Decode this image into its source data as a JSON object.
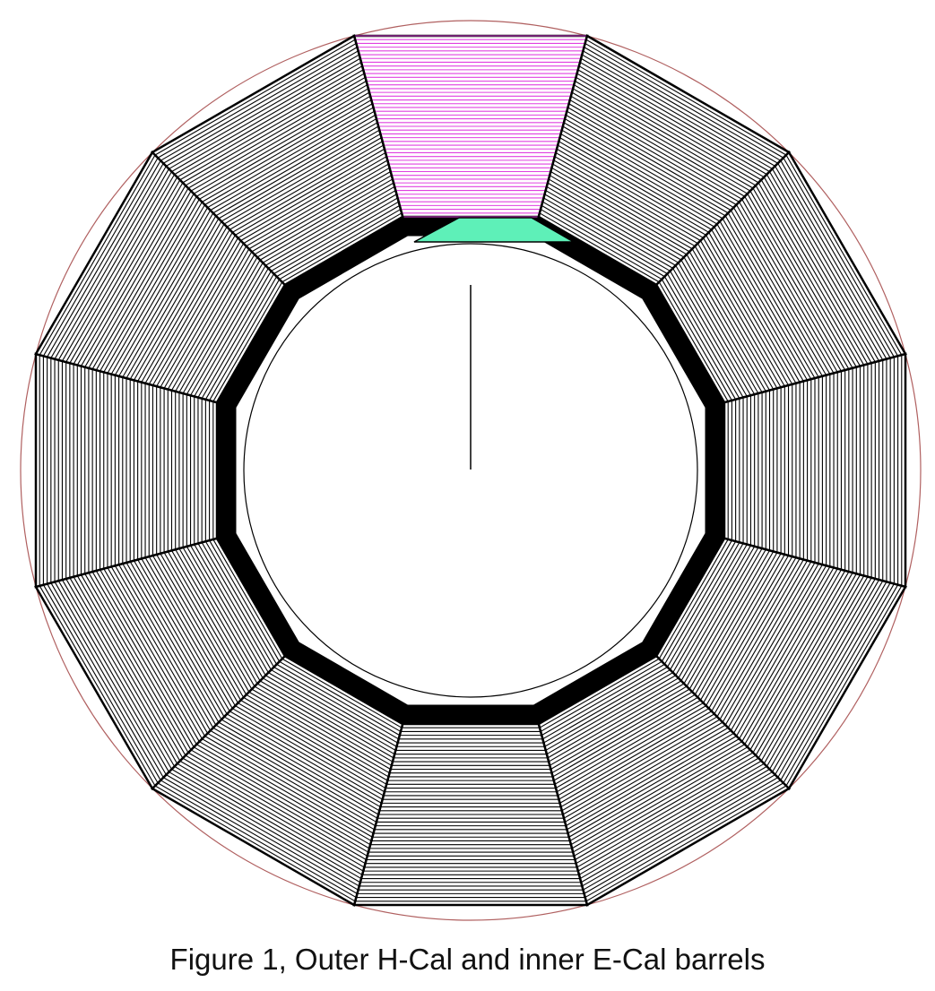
{
  "caption": "Figure 1, Outer H-Cal and inner E-Cal barrels",
  "diagram": {
    "hcal_modules": 12,
    "hcal_layers_per_module": 48,
    "ecal_sides": 12,
    "highlighted_hcal_module": "top",
    "highlighted_ecal_module": "top",
    "colors": {
      "background": "#ffffff",
      "outline": "#000000",
      "envelope": "#b06060",
      "hcal_highlight": "#e040e0",
      "ecal_highlight": "#5ef0b8",
      "ecal_fill": "#000000"
    }
  }
}
